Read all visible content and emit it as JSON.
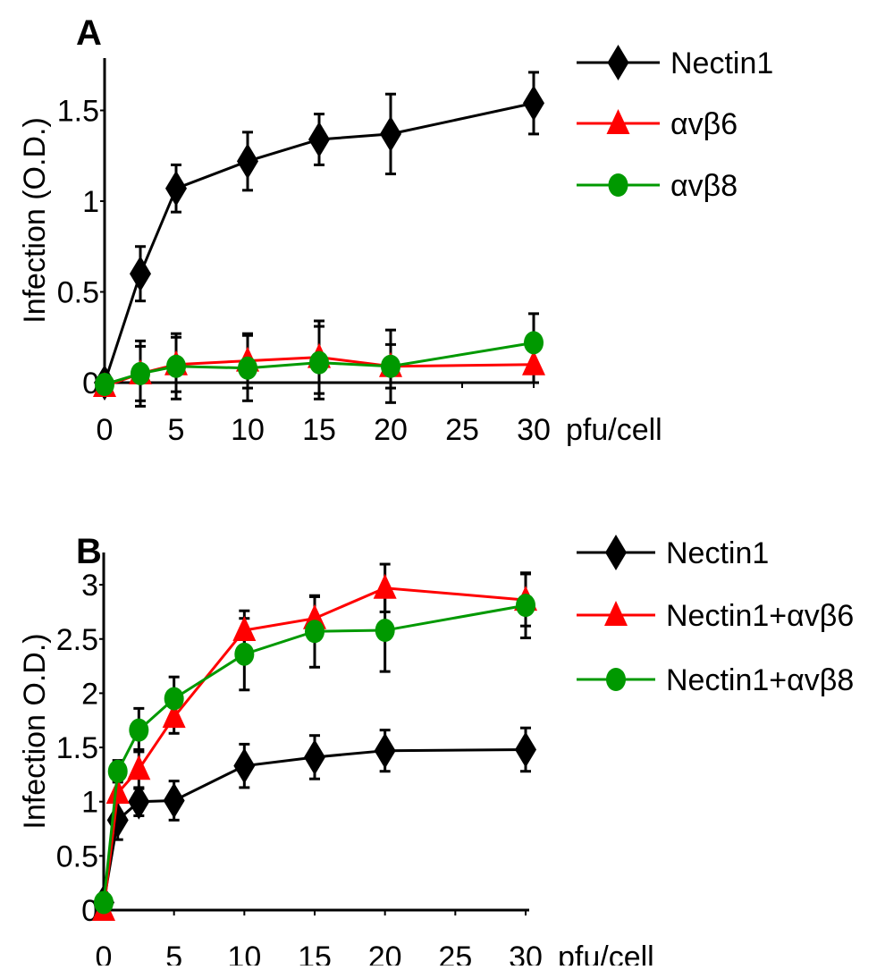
{
  "chart_data": [
    {
      "panel_label": "A",
      "type": "line",
      "ylabel": "Infection (O.D.)",
      "xlabel": "pfu/cell",
      "xlim": [
        0,
        30
      ],
      "ylim": [
        0,
        1.75
      ],
      "xticks": [
        0,
        5,
        10,
        15,
        20,
        25,
        30
      ],
      "yticks": [
        0,
        0.5,
        1,
        1.5
      ],
      "ytick_labels": [
        "0",
        "0.5",
        "1",
        "1.5"
      ],
      "grid": false,
      "legend_placement": "right",
      "x": [
        0,
        2.5,
        5,
        10,
        15,
        20,
        30
      ],
      "series": [
        {
          "name": "Nectin1",
          "color": "#000000",
          "marker": "diamond",
          "values": [
            0.0,
            0.6,
            1.07,
            1.22,
            1.34,
            1.37,
            1.54
          ],
          "errors": [
            0.02,
            0.15,
            0.13,
            0.16,
            0.14,
            0.22,
            0.17
          ]
        },
        {
          "name": "αvβ6",
          "color": "#ff0000",
          "marker": "triangle",
          "values": [
            -0.02,
            0.05,
            0.1,
            0.12,
            0.14,
            0.09,
            0.1
          ],
          "errors": [
            0.02,
            0.15,
            0.15,
            0.15,
            0.2,
            0.12,
            0.1
          ]
        },
        {
          "name": "αvβ8",
          "color": "#009900",
          "marker": "circle",
          "values": [
            -0.01,
            0.05,
            0.09,
            0.08,
            0.11,
            0.09,
            0.22
          ],
          "errors": [
            0.02,
            0.18,
            0.18,
            0.18,
            0.2,
            0.2,
            0.16
          ]
        }
      ]
    },
    {
      "panel_label": "B",
      "type": "line",
      "ylabel": "Infection O.D.)",
      "xlabel": "pfu/cell",
      "xlim": [
        0,
        30
      ],
      "ylim": [
        0,
        3.3
      ],
      "xticks": [
        0,
        5,
        10,
        15,
        20,
        25,
        30
      ],
      "yticks": [
        0,
        0.5,
        1,
        1.5,
        2,
        2.5,
        3
      ],
      "ytick_labels": [
        "0",
        "0.5",
        "1",
        "1.5",
        "2",
        "2.5",
        "3"
      ],
      "grid": false,
      "legend_placement": "right",
      "x": [
        0,
        1,
        2.5,
        5,
        10,
        15,
        20,
        30
      ],
      "series": [
        {
          "name": "Nectin1",
          "color": "#000000",
          "marker": "diamond",
          "values": [
            0.07,
            0.83,
            1.0,
            1.01,
            1.33,
            1.41,
            1.47,
            1.48
          ],
          "errors": [
            0.02,
            0.18,
            0.13,
            0.18,
            0.2,
            0.2,
            0.19,
            0.2
          ]
        },
        {
          "name": "Nectin1+αvβ6",
          "color": "#ff0000",
          "marker": "triangle",
          "values": [
            0.0,
            1.08,
            1.3,
            1.78,
            2.58,
            2.69,
            2.97,
            2.86
          ],
          "errors": [
            0.02,
            0.2,
            0.18,
            0.15,
            0.18,
            0.2,
            0.22,
            0.24
          ]
        },
        {
          "name": "Nectin1+αvβ8",
          "color": "#009900",
          "marker": "circle",
          "values": [
            0.07,
            1.28,
            1.66,
            1.95,
            2.36,
            2.57,
            2.58,
            2.81
          ],
          "errors": [
            0.02,
            0.1,
            0.2,
            0.2,
            0.33,
            0.33,
            0.38,
            0.3
          ]
        }
      ]
    }
  ]
}
